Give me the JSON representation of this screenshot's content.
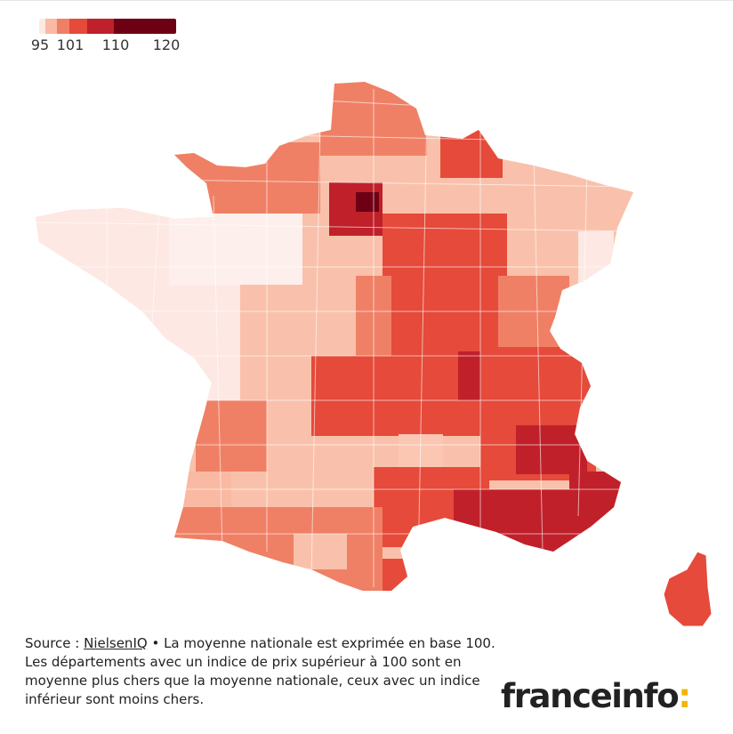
{
  "legend": {
    "labels": [
      "95",
      "101",
      "110",
      "120"
    ],
    "colors": [
      "#fde8e4",
      "#f9b9a2",
      "#ef8065",
      "#e54a3a",
      "#c0202a",
      "#6e0014"
    ]
  },
  "caption": {
    "source_prefix": "Source : ",
    "source_link": "NielsenIQ",
    "line1_rest": " • La moyenne nationale est exprimée en base 100.",
    "line2": "Les départements avec un indice de prix supérieur à 100 sont en moyenne plus chers que la moyenne nationale, ceux avec un indice inférieur sont moins chers."
  },
  "logo": {
    "text": "franceinfo",
    "accent": ":"
  }
}
